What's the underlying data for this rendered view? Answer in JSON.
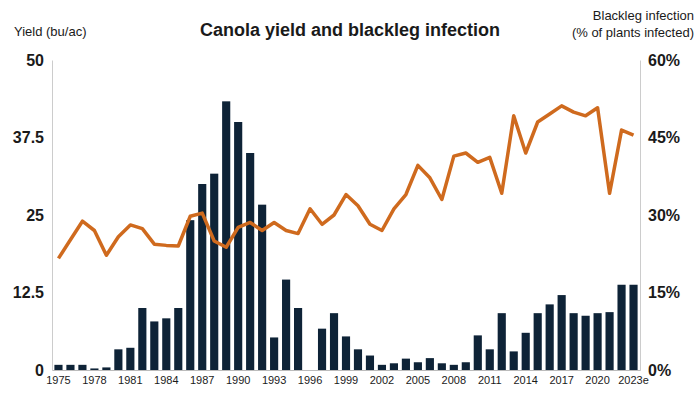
{
  "chart_data": {
    "type": "bar",
    "title": "Canola yield and blackleg infection",
    "y_label": "Yield (bu/ac)",
    "y2_label": "Blackleg infection\n(% of plants infected)",
    "categories": [
      "1975",
      null,
      null,
      "1978",
      null,
      null,
      "1981",
      null,
      null,
      "1984",
      null,
      null,
      "1987",
      null,
      null,
      "1990",
      null,
      null,
      "1993",
      null,
      null,
      "1996",
      null,
      null,
      "1999",
      null,
      null,
      "2002",
      null,
      null,
      "2005",
      null,
      null,
      "2008",
      null,
      null,
      "2011",
      null,
      null,
      "2014",
      null,
      null,
      "2017",
      null,
      null,
      "2020",
      null,
      null,
      "2023e"
    ],
    "series": [
      {
        "type": "bar",
        "axis": "y2",
        "color": "#0e2337",
        "values": [
          1,
          1,
          1,
          0.3,
          0.5,
          4,
          4.3,
          12,
          9.4,
          10,
          12,
          29,
          36,
          38,
          52,
          48,
          42,
          32,
          6.3,
          17.5,
          12,
          0,
          8,
          11,
          6.5,
          4,
          2.8,
          1,
          1.3,
          2.2,
          1.5,
          2.3,
          1.3,
          1,
          1.5,
          6.7,
          4,
          11,
          3.6,
          7.2,
          11,
          12.7,
          14.5,
          11,
          10.5,
          11,
          11.2,
          16.5,
          16.5
        ]
      },
      {
        "type": "line",
        "color": "#cf6a1e",
        "values": [
          18,
          21,
          24,
          22.5,
          18.5,
          21.5,
          23.4,
          22.8,
          20.3,
          20.1,
          20,
          24.8,
          25.3,
          20.8,
          19.8,
          23,
          23.8,
          22.5,
          23.8,
          22.5,
          22,
          26,
          23.5,
          25,
          28.3,
          26.5,
          23.5,
          22.5,
          26,
          28.3,
          33,
          31,
          27.5,
          34.5,
          35,
          33.5,
          34.3,
          28.5,
          41,
          35,
          40,
          41.3,
          42.6,
          41.6,
          41,
          42.3,
          28.5,
          38.7,
          37.9
        ]
      }
    ],
    "ylim": [
      0,
      50
    ],
    "yticks": [
      0,
      12.5,
      25,
      37.5,
      50
    ],
    "y2lim": [
      0,
      60
    ],
    "y2ticks": [
      {
        "value": 0,
        "label": "0%"
      },
      {
        "value": 15,
        "label": "15%"
      },
      {
        "value": 30,
        "label": "30%"
      },
      {
        "value": 45,
        "label": "45%"
      },
      {
        "value": 60,
        "label": "60%"
      }
    ],
    "grid": false
  }
}
